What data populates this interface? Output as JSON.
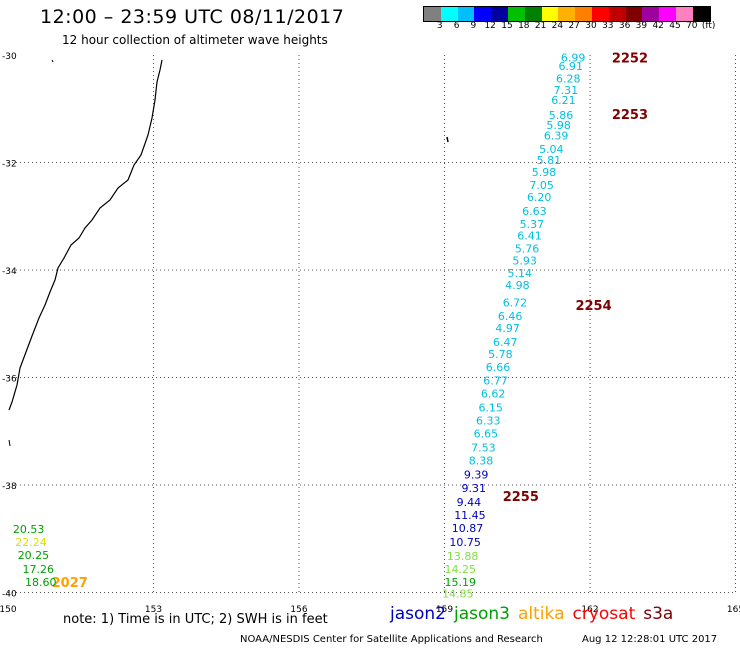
{
  "title": "12:00 – 23:59 UTC 08/11/2017",
  "subtitle": "12 hour collection of altimeter wave heights",
  "color_scale": {
    "colors": [
      "#808080",
      "#00ffff",
      "#00bfff",
      "#0000ff",
      "#0000a0",
      "#00c000",
      "#008000",
      "#ffff00",
      "#ffb000",
      "#ff8000",
      "#ff0000",
      "#c00000",
      "#800000",
      "#a000a0",
      "#ff00ff",
      "#ff80c0",
      "#000000"
    ],
    "labels": [
      "3",
      "6",
      "9",
      "12",
      "15",
      "18",
      "21",
      "24",
      "27",
      "30",
      "33",
      "36",
      "39",
      "42",
      "45",
      "70",
      "(ft)"
    ]
  },
  "axes": {
    "lon_ticks": [
      "150",
      "153",
      "156",
      "159",
      "162",
      "165"
    ],
    "lat_ticks": [
      "-30",
      "-32",
      "-34",
      "-36",
      "-38",
      "-40"
    ]
  },
  "pass_labels": [
    {
      "label": "2252",
      "color": "#800000",
      "lon": 162.45,
      "lat": -30.05
    },
    {
      "label": "2253",
      "color": "#800000",
      "lon": 162.45,
      "lat": -31.1
    },
    {
      "label": "2254",
      "color": "#800000",
      "lon": 161.7,
      "lat": -34.65
    },
    {
      "label": "2255",
      "color": "#800000",
      "lon": 160.2,
      "lat": -38.2
    },
    {
      "label": "2027",
      "color": "#ffa000",
      "lon": 150.9,
      "lat": -39.8
    }
  ],
  "wave_heights": [
    {
      "v": "6.99",
      "c": "#00c0e0",
      "lon": 161.4,
      "lat": -30.05
    },
    {
      "v": "6.91",
      "c": "#00c0e0",
      "lon": 161.35,
      "lat": -30.2
    },
    {
      "v": "6.28",
      "c": "#00c0e0",
      "lon": 161.3,
      "lat": -30.44
    },
    {
      "v": "7.31",
      "c": "#00c0e0",
      "lon": 161.25,
      "lat": -30.65
    },
    {
      "v": "6.21",
      "c": "#00c0e0",
      "lon": 161.2,
      "lat": -30.84
    },
    {
      "v": "5.86",
      "c": "#00c0e0",
      "lon": 161.15,
      "lat": -31.12
    },
    {
      "v": "5.98",
      "c": "#00c0e0",
      "lon": 161.1,
      "lat": -31.3
    },
    {
      "v": "6.39",
      "c": "#00c0e0",
      "lon": 161.05,
      "lat": -31.5
    },
    {
      "v": "5.04",
      "c": "#00c0e0",
      "lon": 160.95,
      "lat": -31.75
    },
    {
      "v": "5.81",
      "c": "#00c0e0",
      "lon": 160.9,
      "lat": -31.95
    },
    {
      "v": "5.98",
      "c": "#00c0e0",
      "lon": 160.8,
      "lat": -32.18
    },
    {
      "v": "7.05",
      "c": "#00c0e0",
      "lon": 160.75,
      "lat": -32.42
    },
    {
      "v": "6.20",
      "c": "#00c0e0",
      "lon": 160.7,
      "lat": -32.64
    },
    {
      "v": "6.63",
      "c": "#00c0e0",
      "lon": 160.6,
      "lat": -32.9
    },
    {
      "v": "5.37",
      "c": "#00c0e0",
      "lon": 160.55,
      "lat": -33.14
    },
    {
      "v": "6.41",
      "c": "#00c0e0",
      "lon": 160.5,
      "lat": -33.36
    },
    {
      "v": "5.76",
      "c": "#00c0e0",
      "lon": 160.45,
      "lat": -33.6
    },
    {
      "v": "5.93",
      "c": "#00c0e0",
      "lon": 160.4,
      "lat": -33.82
    },
    {
      "v": "5.14",
      "c": "#00c0e0",
      "lon": 160.3,
      "lat": -34.06
    },
    {
      "v": "4.98",
      "c": "#00c0e0",
      "lon": 160.25,
      "lat": -34.28
    },
    {
      "v": "6.72",
      "c": "#00c0e0",
      "lon": 160.2,
      "lat": -34.6
    },
    {
      "v": "6.46",
      "c": "#00c0e0",
      "lon": 160.1,
      "lat": -34.86
    },
    {
      "v": "4.97",
      "c": "#00c0e0",
      "lon": 160.05,
      "lat": -35.08
    },
    {
      "v": "6.47",
      "c": "#00c0e0",
      "lon": 160.0,
      "lat": -35.34
    },
    {
      "v": "5.78",
      "c": "#00c0e0",
      "lon": 159.9,
      "lat": -35.56
    },
    {
      "v": "6.66",
      "c": "#00c0e0",
      "lon": 159.85,
      "lat": -35.8
    },
    {
      "v": "6.77",
      "c": "#00c0e0",
      "lon": 159.8,
      "lat": -36.06
    },
    {
      "v": "6.62",
      "c": "#00c0e0",
      "lon": 159.75,
      "lat": -36.3
    },
    {
      "v": "6.15",
      "c": "#00c0e0",
      "lon": 159.7,
      "lat": -36.56
    },
    {
      "v": "6.33",
      "c": "#00c0e0",
      "lon": 159.65,
      "lat": -36.8
    },
    {
      "v": "6.65",
      "c": "#00c0e0",
      "lon": 159.6,
      "lat": -37.04
    },
    {
      "v": "7.53",
      "c": "#00c0e0",
      "lon": 159.55,
      "lat": -37.3
    },
    {
      "v": "8.38",
      "c": "#00c0e0",
      "lon": 159.5,
      "lat": -37.54
    },
    {
      "v": "9.39",
      "c": "#0000c0",
      "lon": 159.4,
      "lat": -37.8
    },
    {
      "v": "9.31",
      "c": "#0000c0",
      "lon": 159.35,
      "lat": -38.06
    },
    {
      "v": "9.44",
      "c": "#0000c0",
      "lon": 159.25,
      "lat": -38.32
    },
    {
      "v": "11.45",
      "c": "#0000c0",
      "lon": 159.2,
      "lat": -38.56
    },
    {
      "v": "10.87",
      "c": "#0000c0",
      "lon": 159.15,
      "lat": -38.8
    },
    {
      "v": "10.75",
      "c": "#0000c0",
      "lon": 159.1,
      "lat": -39.06
    },
    {
      "v": "13.88",
      "c": "#80e040",
      "lon": 159.05,
      "lat": -39.32
    },
    {
      "v": "14.25",
      "c": "#80e040",
      "lon": 159.0,
      "lat": -39.56
    },
    {
      "v": "15.19",
      "c": "#00a000",
      "lon": 159.0,
      "lat": -39.8
    },
    {
      "v": "14.85",
      "c": "#80e040",
      "lon": 158.95,
      "lat": -40.02
    },
    {
      "v": "20.53",
      "c": "#00a000",
      "lon": 150.1,
      "lat": -38.82
    },
    {
      "v": "22.24",
      "c": "#e0e000",
      "lon": 150.15,
      "lat": -39.06
    },
    {
      "v": "20.25",
      "c": "#00a000",
      "lon": 150.2,
      "lat": -39.3
    },
    {
      "v": "17.26",
      "c": "#00a000",
      "lon": 150.3,
      "lat": -39.56
    },
    {
      "v": "18.60",
      "c": "#00a000",
      "lon": 150.35,
      "lat": -39.8
    }
  ],
  "note": "note: 1) Time is in UTC; 2) SWH is in feet",
  "legend": [
    {
      "label": "jason2",
      "color": "#0000c0"
    },
    {
      "label": "jason3",
      "color": "#00a000"
    },
    {
      "label": "altika",
      "color": "#ffa000"
    },
    {
      "label": "cryosat",
      "color": "#ff0000"
    },
    {
      "label": "s3a",
      "color": "#800000"
    }
  ],
  "footer_left": "NOAA/NESDIS Center for Satellite Applications and Research",
  "footer_right": "Aug 12 12:28:01 UTC 2017"
}
